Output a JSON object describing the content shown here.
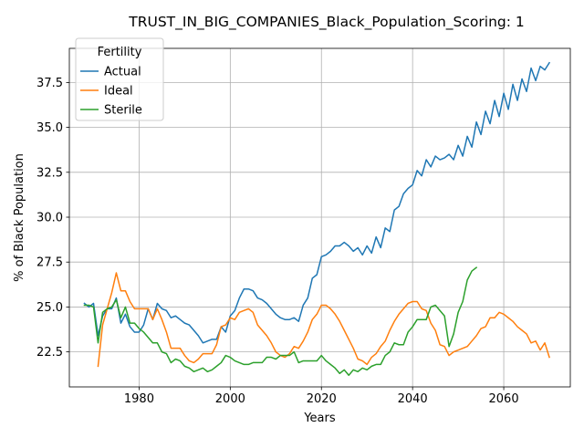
{
  "chart_data": {
    "type": "line",
    "title": "TRUST_IN_BIG_COMPANIES_Black_Population_Scoring: 1",
    "xlabel": "Years",
    "ylabel": "% of Black Population",
    "xlim": [
      1964.7,
      2074.6
    ],
    "ylim": [
      20.55,
      39.4
    ],
    "xticks": [
      1980,
      2000,
      2020,
      2040,
      2060
    ],
    "xtick_labels": [
      "1980",
      "2000",
      "2020",
      "2040",
      "2060"
    ],
    "yticks": [
      22.5,
      25.0,
      27.5,
      30.0,
      32.5,
      35.0,
      37.5
    ],
    "ytick_labels": [
      "22.5",
      "25.0",
      "27.5",
      "30.0",
      "32.5",
      "35.0",
      "37.5"
    ],
    "grid": true,
    "legend": {
      "title": "Fertility",
      "placement": "top-left"
    },
    "series": [
      {
        "name": "Actual",
        "color": "#1f77b4",
        "x": [
          1968,
          1969,
          1970,
          1971,
          1972,
          1973,
          1974,
          1975,
          1976,
          1977,
          1978,
          1979,
          1980,
          1981,
          1982,
          1983,
          1984,
          1985,
          1986,
          1987,
          1988,
          1989,
          1990,
          1991,
          1992,
          1993,
          1994,
          1995,
          1996,
          1997,
          1998,
          1999,
          2000,
          2001,
          2002,
          2003,
          2004,
          2005,
          2006,
          2007,
          2008,
          2009,
          2010,
          2011,
          2012,
          2013,
          2014,
          2015,
          2016,
          2017,
          2018,
          2019,
          2020,
          2021,
          2022,
          2023,
          2024,
          2025,
          2026,
          2027,
          2028,
          2029,
          2030,
          2031,
          2032,
          2033,
          2034,
          2035,
          2036,
          2037,
          2038,
          2039,
          2040,
          2041,
          2042,
          2043,
          2044,
          2045,
          2046,
          2047,
          2048,
          2049,
          2050,
          2051,
          2052,
          2053,
          2054,
          2055,
          2056,
          2057,
          2058,
          2059,
          2060,
          2061,
          2062,
          2063,
          2064,
          2065,
          2066,
          2067,
          2068,
          2069,
          2070
        ],
        "values": [
          25.2,
          25.0,
          25.2,
          23.4,
          24.5,
          24.9,
          24.9,
          25.5,
          24.1,
          24.6,
          23.9,
          23.6,
          23.6,
          24.0,
          24.9,
          24.3,
          25.2,
          24.9,
          24.8,
          24.4,
          24.5,
          24.3,
          24.1,
          24.0,
          23.7,
          23.4,
          23.0,
          23.1,
          23.2,
          23.2,
          23.9,
          23.6,
          24.5,
          24.8,
          25.5,
          26.0,
          26.0,
          25.9,
          25.5,
          25.4,
          25.2,
          24.9,
          24.6,
          24.4,
          24.3,
          24.3,
          24.4,
          24.2,
          25.1,
          25.5,
          26.6,
          26.8,
          27.8,
          27.9,
          28.1,
          28.4,
          28.4,
          28.6,
          28.4,
          28.1,
          28.3,
          27.9,
          28.4,
          28.0,
          28.9,
          28.3,
          29.4,
          29.2,
          30.4,
          30.6,
          31.3,
          31.6,
          31.8,
          32.6,
          32.3,
          33.2,
          32.8,
          33.4,
          33.2,
          33.3,
          33.5,
          33.2,
          34.0,
          33.4,
          34.5,
          33.9,
          35.3,
          34.6,
          35.9,
          35.2,
          36.5,
          35.6,
          36.9,
          36.0,
          37.4,
          36.5,
          37.7,
          37.0,
          38.3,
          37.6,
          38.4,
          38.2,
          38.6
        ]
      },
      {
        "name": "Ideal",
        "color": "#ff7f0e",
        "x": [
          1971,
          1972,
          1973,
          1974,
          1975,
          1976,
          1977,
          1978,
          1979,
          1980,
          1981,
          1982,
          1983,
          1984,
          1985,
          1986,
          1987,
          1988,
          1989,
          1990,
          1991,
          1992,
          1993,
          1994,
          1995,
          1996,
          1997,
          1998,
          1999,
          2000,
          2001,
          2002,
          2003,
          2004,
          2005,
          2006,
          2007,
          2008,
          2009,
          2010,
          2011,
          2012,
          2013,
          2014,
          2015,
          2016,
          2017,
          2018,
          2019,
          2020,
          2021,
          2022,
          2023,
          2024,
          2025,
          2026,
          2027,
          2028,
          2029,
          2030,
          2031,
          2032,
          2033,
          2034,
          2035,
          2036,
          2037,
          2038,
          2039,
          2040,
          2041,
          2042,
          2043,
          2044,
          2045,
          2046,
          2047,
          2048,
          2049,
          2050,
          2051,
          2052,
          2053,
          2054,
          2055,
          2056,
          2057,
          2058,
          2059,
          2060,
          2061,
          2062,
          2063,
          2064,
          2065,
          2066,
          2067,
          2068,
          2069,
          2070
        ],
        "values": [
          21.7,
          24.0,
          24.9,
          25.8,
          26.9,
          25.9,
          25.9,
          25.3,
          24.9,
          24.9,
          24.9,
          24.9,
          24.3,
          24.9,
          24.3,
          23.6,
          22.7,
          22.7,
          22.7,
          22.3,
          22.0,
          21.9,
          22.1,
          22.4,
          22.4,
          22.4,
          22.9,
          23.9,
          24.0,
          24.4,
          24.3,
          24.7,
          24.8,
          24.9,
          24.7,
          24.0,
          23.7,
          23.4,
          23.0,
          22.5,
          22.3,
          22.2,
          22.4,
          22.8,
          22.7,
          23.1,
          23.6,
          24.3,
          24.6,
          25.1,
          25.1,
          24.9,
          24.6,
          24.2,
          23.7,
          23.2,
          22.7,
          22.1,
          22.0,
          21.8,
          22.2,
          22.4,
          22.8,
          23.1,
          23.7,
          24.2,
          24.6,
          24.9,
          25.2,
          25.3,
          25.3,
          24.9,
          24.8,
          24.1,
          23.7,
          22.9,
          22.8,
          22.3,
          22.5,
          22.6,
          22.7,
          22.8,
          23.1,
          23.4,
          23.8,
          23.9,
          24.4,
          24.4,
          24.7,
          24.6,
          24.4,
          24.2,
          23.9,
          23.7,
          23.5,
          23.0,
          23.1,
          22.6,
          23.0,
          22.2
        ]
      },
      {
        "name": "Sterile",
        "color": "#2ca02c",
        "x": [
          1968,
          1969,
          1970,
          1971,
          1972,
          1973,
          1974,
          1975,
          1976,
          1977,
          1978,
          1979,
          1980,
          1981,
          1982,
          1983,
          1984,
          1985,
          1986,
          1987,
          1988,
          1989,
          1990,
          1991,
          1992,
          1993,
          1994,
          1995,
          1996,
          1997,
          1998,
          1999,
          2000,
          2001,
          2002,
          2003,
          2004,
          2005,
          2006,
          2007,
          2008,
          2009,
          2010,
          2011,
          2012,
          2013,
          2014,
          2015,
          2016,
          2017,
          2018,
          2019,
          2020,
          2021,
          2022,
          2023,
          2024,
          2025,
          2026,
          2027,
          2028,
          2029,
          2030,
          2031,
          2032,
          2033,
          2034,
          2035,
          2036,
          2037,
          2038,
          2039,
          2040,
          2041,
          2042,
          2043,
          2044,
          2045,
          2046,
          2047,
          2048,
          2049,
          2050,
          2051,
          2052,
          2053,
          2054
        ],
        "values": [
          25.1,
          25.1,
          25.0,
          23.0,
          24.7,
          24.9,
          25.0,
          25.4,
          24.4,
          25.0,
          24.1,
          24.1,
          23.8,
          23.6,
          23.3,
          23.0,
          23.0,
          22.5,
          22.4,
          21.9,
          22.1,
          22.0,
          21.7,
          21.6,
          21.4,
          21.5,
          21.6,
          21.4,
          21.5,
          21.7,
          21.9,
          22.3,
          22.2,
          22.0,
          21.9,
          21.8,
          21.8,
          21.9,
          21.9,
          21.9,
          22.2,
          22.2,
          22.1,
          22.3,
          22.3,
          22.3,
          22.5,
          21.9,
          22.0,
          22.0,
          22.0,
          22.0,
          22.3,
          22.0,
          21.8,
          21.6,
          21.3,
          21.5,
          21.2,
          21.5,
          21.4,
          21.6,
          21.5,
          21.7,
          21.8,
          21.8,
          22.3,
          22.5,
          23.0,
          22.9,
          22.9,
          23.6,
          23.9,
          24.3,
          24.3,
          24.3,
          25.0,
          25.1,
          24.8,
          24.5,
          22.8,
          23.5,
          24.7,
          25.3,
          26.5,
          27.0,
          27.2
        ]
      }
    ]
  }
}
